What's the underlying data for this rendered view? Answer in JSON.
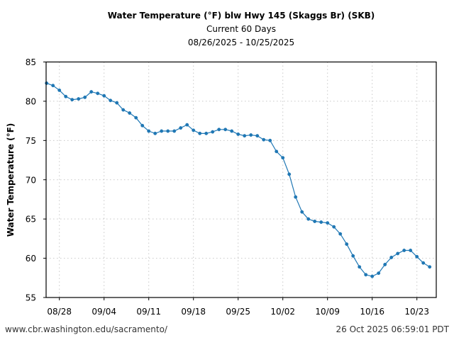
{
  "chart_data": {
    "type": "line",
    "title": "Water Temperature (°F) blw Hwy 145 (Skaggs Br) (SKB)",
    "subtitle": "Current 60 Days",
    "date_range": "08/26/2025 - 10/25/2025",
    "xlabel": "",
    "ylabel": "Water Temperature (°F)",
    "ylim": [
      55,
      85
    ],
    "yticks": [
      55,
      60,
      65,
      70,
      75,
      80,
      85
    ],
    "start_date": "08/26/2025",
    "xlim_days": [
      0,
      61
    ],
    "xticks": [
      {
        "day": 2,
        "label": "08/28"
      },
      {
        "day": 9,
        "label": "09/04"
      },
      {
        "day": 16,
        "label": "09/11"
      },
      {
        "day": 23,
        "label": "09/18"
      },
      {
        "day": 30,
        "label": "09/25"
      },
      {
        "day": 37,
        "label": "10/02"
      },
      {
        "day": 44,
        "label": "10/09"
      },
      {
        "day": 51,
        "label": "10/16"
      },
      {
        "day": 58,
        "label": "10/23"
      }
    ],
    "grid": true,
    "legend": "none",
    "series": [
      {
        "name": "Water Temperature",
        "color": "#1f77b4",
        "values": [
          82.3,
          82.0,
          81.4,
          80.6,
          80.2,
          80.3,
          80.5,
          81.2,
          81.0,
          80.7,
          80.1,
          79.8,
          78.9,
          78.5,
          77.9,
          76.9,
          76.2,
          75.9,
          76.2,
          76.2,
          76.2,
          76.6,
          77.0,
          76.3,
          75.9,
          75.9,
          76.1,
          76.4,
          76.4,
          76.2,
          75.8,
          75.6,
          75.7,
          75.6,
          75.1,
          75.0,
          73.6,
          72.8,
          70.7,
          67.8,
          65.9,
          65.0,
          64.7,
          64.6,
          64.5,
          64.0,
          63.1,
          61.8,
          60.3,
          58.9,
          57.9,
          57.7,
          58.1,
          59.2,
          60.1,
          60.6,
          61.0,
          61.0,
          60.2,
          59.4,
          58.9
        ]
      }
    ]
  },
  "footer": {
    "url": "www.cbr.washington.edu/sacramento/",
    "timestamp": "26 Oct 2025 06:59:01 PDT"
  }
}
